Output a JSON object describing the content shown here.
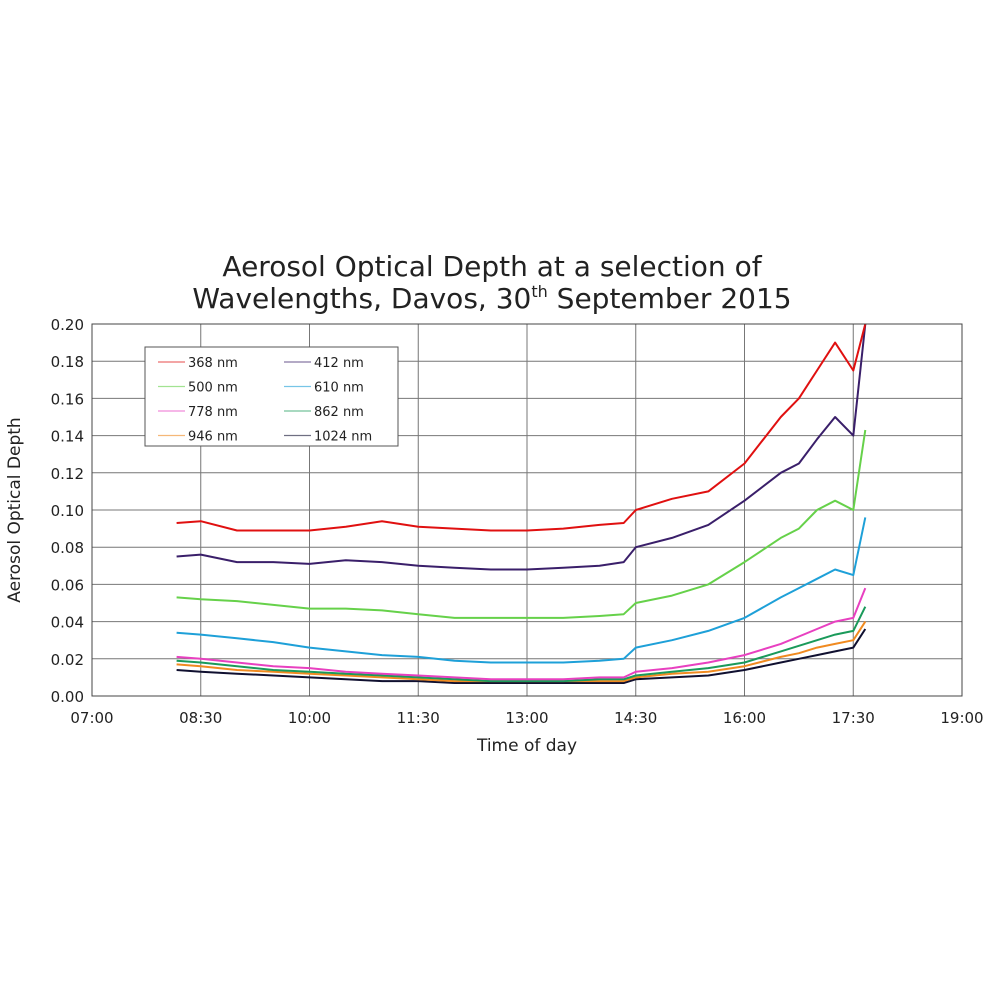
{
  "chart_data": {
    "type": "line",
    "title_line1": "Aerosol Optical Depth at a selection of",
    "title_line2_pre": "Wavelengths, Davos, 30",
    "title_sup": "th",
    "title_line2_post": " September 2015",
    "xlabel": "Time of day",
    "ylabel": "Aerosol Optical Depth",
    "xlim": [
      "07:00",
      "19:00"
    ],
    "ylim": [
      0,
      0.2
    ],
    "xticks": [
      "07:00",
      "08:30",
      "10:00",
      "11:30",
      "13:00",
      "14:30",
      "16:00",
      "17:30",
      "19:00"
    ],
    "yticks": [
      "0.00",
      "0.02",
      "0.04",
      "0.06",
      "0.08",
      "0.10",
      "0.12",
      "0.14",
      "0.16",
      "0.18",
      "0.20"
    ],
    "grid": true,
    "legend_placement": "top-left",
    "x": [
      "08:10",
      "08:30",
      "09:00",
      "09:30",
      "10:00",
      "10:30",
      "11:00",
      "11:30",
      "12:00",
      "12:30",
      "13:00",
      "13:30",
      "14:00",
      "14:20",
      "14:30",
      "15:00",
      "15:30",
      "16:00",
      "16:30",
      "16:45",
      "17:00",
      "17:15",
      "17:30",
      "17:40"
    ],
    "series": [
      {
        "name": "368 nm",
        "color": "#e01010",
        "values": [
          0.093,
          0.094,
          0.089,
          0.089,
          0.089,
          0.091,
          0.094,
          0.091,
          0.09,
          0.089,
          0.089,
          0.09,
          0.092,
          0.093,
          0.1,
          0.106,
          0.11,
          0.125,
          0.15,
          0.16,
          0.175,
          0.19,
          0.175,
          0.2
        ]
      },
      {
        "name": "412 nm",
        "color": "#3a1f6a",
        "values": [
          0.075,
          0.076,
          0.072,
          0.072,
          0.071,
          0.073,
          0.072,
          0.07,
          0.069,
          0.068,
          0.068,
          0.069,
          0.07,
          0.072,
          0.08,
          0.085,
          0.092,
          0.105,
          0.12,
          0.125,
          0.138,
          0.15,
          0.14,
          0.2
        ]
      },
      {
        "name": "500 nm",
        "color": "#66d14a",
        "values": [
          0.053,
          0.052,
          0.051,
          0.049,
          0.047,
          0.047,
          0.046,
          0.044,
          0.042,
          0.042,
          0.042,
          0.042,
          0.043,
          0.044,
          0.05,
          0.054,
          0.06,
          0.072,
          0.085,
          0.09,
          0.1,
          0.105,
          0.1,
          0.143
        ]
      },
      {
        "name": "610 nm",
        "color": "#1ea0d8",
        "values": [
          0.034,
          0.033,
          0.031,
          0.029,
          0.026,
          0.024,
          0.022,
          0.021,
          0.019,
          0.018,
          0.018,
          0.018,
          0.019,
          0.02,
          0.026,
          0.03,
          0.035,
          0.042,
          0.053,
          0.058,
          0.063,
          0.068,
          0.065,
          0.096
        ]
      },
      {
        "name": "778 nm",
        "color": "#e840c0",
        "values": [
          0.021,
          0.02,
          0.018,
          0.016,
          0.015,
          0.013,
          0.012,
          0.011,
          0.01,
          0.009,
          0.009,
          0.009,
          0.01,
          0.01,
          0.013,
          0.015,
          0.018,
          0.022,
          0.028,
          0.032,
          0.036,
          0.04,
          0.042,
          0.058
        ]
      },
      {
        "name": "862 nm",
        "color": "#1a9a5a",
        "values": [
          0.019,
          0.018,
          0.016,
          0.014,
          0.013,
          0.012,
          0.011,
          0.01,
          0.009,
          0.008,
          0.008,
          0.008,
          0.009,
          0.009,
          0.011,
          0.013,
          0.015,
          0.018,
          0.024,
          0.027,
          0.03,
          0.033,
          0.035,
          0.048
        ]
      },
      {
        "name": "946 nm",
        "color": "#f08a20",
        "values": [
          0.017,
          0.016,
          0.014,
          0.013,
          0.012,
          0.011,
          0.01,
          0.009,
          0.008,
          0.008,
          0.008,
          0.008,
          0.008,
          0.008,
          0.01,
          0.012,
          0.013,
          0.016,
          0.021,
          0.023,
          0.026,
          0.028,
          0.03,
          0.04
        ]
      },
      {
        "name": "1024 nm",
        "color": "#101030",
        "values": [
          0.014,
          0.013,
          0.012,
          0.011,
          0.01,
          0.009,
          0.008,
          0.008,
          0.007,
          0.007,
          0.007,
          0.007,
          0.007,
          0.007,
          0.009,
          0.01,
          0.011,
          0.014,
          0.018,
          0.02,
          0.022,
          0.024,
          0.026,
          0.036
        ]
      }
    ]
  }
}
